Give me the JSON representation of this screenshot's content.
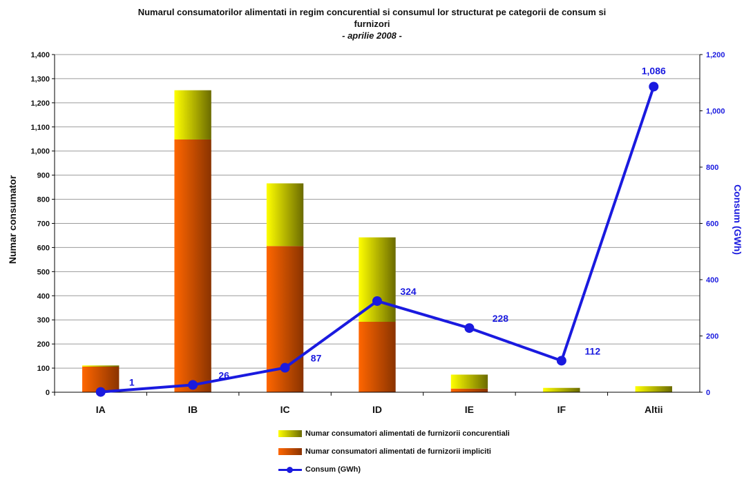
{
  "title_line1": "Numarul consumatorilor alimentati in regim concurential si consumul lor structurat pe categorii de consum si",
  "title_line2": "furnizori",
  "subtitle": "- aprilie 2008 -",
  "chart_data": {
    "type": "bar",
    "stacked": true,
    "categories": [
      "IA",
      "IB",
      "IC",
      "ID",
      "IE",
      "IF",
      "Altii"
    ],
    "ylabel": "Numar consumator",
    "y2label": "Consum (GWh)",
    "ylim": [
      0,
      1400
    ],
    "y2lim": [
      0,
      1200
    ],
    "yticks": [
      "0",
      "100",
      "200",
      "300",
      "400",
      "500",
      "600",
      "700",
      "800",
      "900",
      "1,000",
      "1,100",
      "1,200",
      "1,300",
      "1,400"
    ],
    "y2ticks": [
      "0",
      "200",
      "400",
      "600",
      "800",
      "1,000",
      "1,200"
    ],
    "grid": true,
    "legend_position": "bottom",
    "series": [
      {
        "name": "Numar consumatori alimentati de furnizorii impliciti",
        "type": "bar",
        "axis": "left",
        "color": "#ff6600",
        "values": [
          106,
          1048,
          606,
          292,
          15,
          0,
          0
        ]
      },
      {
        "name": "Numar consumatori alimentati de furnizorii concurentiali",
        "type": "bar",
        "axis": "left",
        "color": "#ffff00",
        "values": [
          5,
          204,
          260,
          350,
          58,
          18,
          25
        ]
      },
      {
        "name": "Consum (GWh)",
        "type": "line",
        "axis": "right",
        "color": "#1a1adf",
        "values": [
          1,
          26,
          87,
          324,
          228,
          112,
          1086
        ],
        "labels": [
          "1",
          "26",
          "87",
          "324",
          "228",
          "112",
          "1,086"
        ]
      }
    ]
  }
}
